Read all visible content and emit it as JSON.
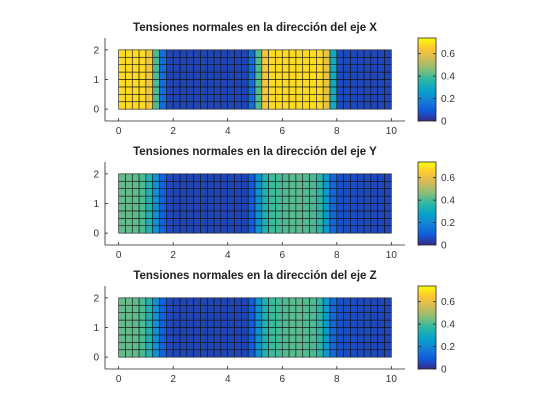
{
  "chart_data": [
    {
      "type": "heatmap",
      "title": "Tensiones normales en la dirección del eje X",
      "xlabel": "",
      "ylabel": "",
      "xlim": [
        -0.5,
        10.5
      ],
      "ylim": [
        -0.4,
        2.4
      ],
      "x_ticks": [
        "0",
        "2",
        "4",
        "6",
        "8",
        "10"
      ],
      "y_ticks": [
        "0",
        "1",
        "2"
      ],
      "grid": false,
      "mesh": {
        "x_range": [
          0,
          10
        ],
        "y_range": [
          0,
          2
        ],
        "columns": 40,
        "rows": 8
      },
      "colorbar": {
        "range": [
          0,
          0.74
        ],
        "ticks": [
          "0",
          "0.2",
          "0.4",
          "0.6"
        ],
        "colormap": "parula",
        "placement": "right"
      },
      "profile_along_x": {
        "x": [
          0,
          0.25,
          0.5,
          0.75,
          1.0,
          1.25,
          1.5,
          1.75,
          2.0,
          4.75,
          5.0,
          5.25,
          5.5,
          7.5,
          7.75,
          8.0,
          10
        ],
        "value": [
          0.68,
          0.68,
          0.68,
          0.68,
          0.68,
          0.58,
          0.22,
          0.06,
          0.05,
          0.05,
          0.22,
          0.58,
          0.68,
          0.68,
          0.55,
          0.06,
          0.05
        ]
      }
    },
    {
      "type": "heatmap",
      "title": "Tensiones normales en la dirección del eje Y",
      "xlabel": "",
      "ylabel": "",
      "xlim": [
        -0.5,
        10.5
      ],
      "ylim": [
        -0.4,
        2.4
      ],
      "x_ticks": [
        "0",
        "2",
        "4",
        "6",
        "8",
        "10"
      ],
      "y_ticks": [
        "0",
        "1",
        "2"
      ],
      "grid": false,
      "mesh": {
        "x_range": [
          0,
          10
        ],
        "y_range": [
          0,
          2
        ],
        "columns": 40,
        "rows": 8
      },
      "colorbar": {
        "range": [
          0,
          0.74
        ],
        "ticks": [
          "0",
          "0.2",
          "0.4",
          "0.6"
        ],
        "colormap": "parula",
        "placement": "right"
      },
      "profile_along_x": {
        "x": [
          0,
          0.25,
          0.5,
          0.75,
          1.0,
          1.25,
          1.5,
          1.75,
          2.0,
          4.75,
          5.0,
          5.25,
          5.5,
          6.5,
          7.25,
          7.5,
          7.75,
          8.0,
          10
        ],
        "value": [
          0.42,
          0.43,
          0.42,
          0.42,
          0.38,
          0.3,
          0.15,
          0.07,
          0.05,
          0.05,
          0.15,
          0.3,
          0.38,
          0.42,
          0.4,
          0.32,
          0.18,
          0.07,
          0.05
        ]
      }
    },
    {
      "type": "heatmap",
      "title": "Tensiones normales en la dirección del eje Z",
      "xlabel": "",
      "ylabel": "",
      "xlim": [
        -0.5,
        10.5
      ],
      "ylim": [
        -0.4,
        2.4
      ],
      "x_ticks": [
        "0",
        "2",
        "4",
        "6",
        "8",
        "10"
      ],
      "y_ticks": [
        "0",
        "1",
        "2"
      ],
      "grid": false,
      "mesh": {
        "x_range": [
          0,
          10
        ],
        "y_range": [
          0,
          2
        ],
        "columns": 40,
        "rows": 8
      },
      "colorbar": {
        "range": [
          0,
          0.74
        ],
        "ticks": [
          "0",
          "0.2",
          "0.4",
          "0.6"
        ],
        "colormap": "parula",
        "placement": "right"
      },
      "profile_along_x": {
        "x": [
          0,
          0.25,
          0.5,
          0.75,
          1.0,
          1.25,
          1.5,
          1.75,
          2.0,
          4.75,
          5.0,
          5.25,
          5.5,
          6.5,
          7.25,
          7.5,
          7.75,
          8.0,
          10
        ],
        "value": [
          0.42,
          0.43,
          0.42,
          0.42,
          0.38,
          0.3,
          0.15,
          0.07,
          0.05,
          0.05,
          0.15,
          0.3,
          0.38,
          0.42,
          0.4,
          0.32,
          0.18,
          0.07,
          0.05
        ]
      }
    }
  ]
}
